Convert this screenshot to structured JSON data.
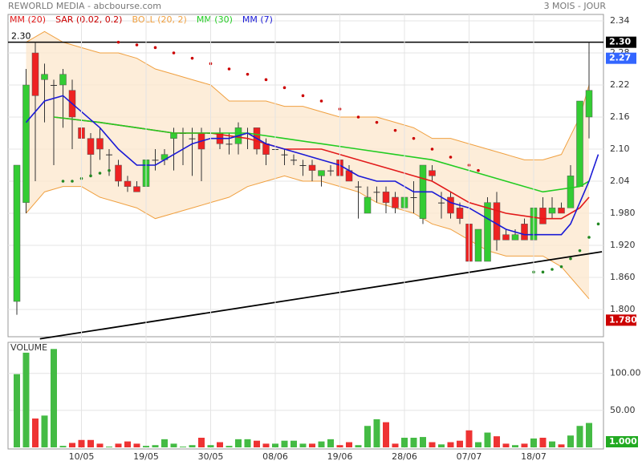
{
  "header": {
    "title": "REWORLD MEDIA - abcbourse.com",
    "period": "3 MOIS - JOUR"
  },
  "chart_data": [
    {
      "type": "candlestick",
      "up_color": "#33cc33",
      "down_color": "#ee2222",
      "open": [
        1.815,
        2.0,
        2.28,
        2.23,
        2.22,
        2.22,
        2.21,
        2.14,
        2.12,
        2.12,
        2.09,
        2.07,
        2.04,
        2.03,
        2.03,
        2.08,
        2.08,
        2.12,
        2.13,
        2.12,
        2.13,
        2.13,
        2.13,
        2.11,
        2.11,
        2.13,
        2.14,
        2.11,
        2.1,
        2.09,
        2.08,
        2.07,
        2.07,
        2.05,
        2.06,
        2.08,
        2.06,
        2.03,
        1.98,
        2.02,
        2.02,
        2.01,
        1.99,
        2.01,
        1.97,
        2.06,
        2.0,
        2.01,
        1.99,
        1.96,
        1.89,
        1.89,
        2.0,
        1.94,
        1.93,
        1.96,
        1.93,
        1.99,
        1.98,
        1.99,
        1.99,
        2.03,
        2.16
      ],
      "high": [
        2.07,
        2.25,
        2.3,
        2.26,
        2.23,
        2.25,
        2.23,
        2.15,
        2.13,
        2.14,
        2.1,
        2.08,
        2.05,
        2.04,
        2.08,
        2.1,
        2.1,
        2.14,
        2.14,
        2.14,
        2.14,
        2.14,
        2.14,
        2.13,
        2.15,
        2.14,
        2.14,
        2.12,
        2.11,
        2.1,
        2.09,
        2.08,
        2.08,
        2.06,
        2.07,
        2.09,
        2.07,
        2.04,
        2.03,
        2.03,
        2.03,
        2.02,
        2.02,
        2.04,
        2.07,
        2.07,
        2.02,
        2.02,
        2.0,
        1.97,
        1.95,
        2.01,
        2.02,
        1.95,
        1.95,
        1.97,
        1.99,
        2.01,
        2.01,
        2.0,
        2.07,
        2.19,
        2.3
      ],
      "low": [
        1.79,
        1.98,
        2.04,
        2.15,
        2.07,
        2.14,
        2.1,
        2.08,
        2.05,
        2.08,
        2.05,
        2.03,
        2.02,
        2.02,
        2.02,
        2.06,
        2.07,
        2.06,
        2.07,
        2.05,
        2.04,
        2.08,
        2.1,
        2.09,
        2.09,
        2.1,
        2.09,
        2.07,
        2.08,
        2.07,
        2.07,
        2.05,
        2.04,
        2.03,
        2.05,
        2.03,
        2.04,
        1.97,
        1.98,
        2.0,
        1.98,
        1.98,
        1.98,
        1.98,
        1.96,
        2.04,
        1.97,
        1.97,
        1.96,
        1.88,
        1.89,
        1.89,
        1.91,
        1.93,
        1.93,
        1.93,
        1.93,
        1.96,
        1.97,
        1.98,
        1.99,
        2.03,
        2.12
      ],
      "close": [
        2.07,
        2.22,
        2.2,
        2.24,
        2.22,
        2.24,
        2.16,
        2.12,
        2.09,
        2.1,
        2.09,
        2.04,
        2.03,
        2.02,
        2.08,
        2.08,
        2.09,
        2.13,
        2.13,
        2.12,
        2.1,
        2.13,
        2.11,
        2.11,
        2.14,
        2.13,
        2.1,
        2.09,
        2.1,
        2.09,
        2.08,
        2.07,
        2.06,
        2.06,
        2.06,
        2.05,
        2.04,
        2.03,
        2.01,
        2.02,
        2.0,
        1.99,
        2.01,
        2.01,
        2.07,
        2.05,
        2.0,
        1.98,
        1.97,
        1.89,
        1.95,
        2.0,
        1.93,
        1.93,
        1.94,
        1.93,
        1.99,
        1.96,
        1.99,
        1.98,
        2.05,
        2.19,
        2.21
      ],
      "ylim": [
        1.749,
        2.352
      ],
      "yticks": [
        2.34,
        2.28,
        2.22,
        2.16,
        {
          "value": 2.1,
          "label": "2.10"
        },
        2.04,
        {
          "value": 1.98,
          "label": "1.980"
        },
        {
          "value": 1.92,
          "label": "1.920"
        },
        {
          "value": 1.86,
          "label": "1.860"
        },
        {
          "value": 1.8,
          "label": "1.800"
        }
      ],
      "overlays": [
        {
          "name": "MM (20)",
          "kind": "line",
          "color": "#e21a1a",
          "x": [
            4,
            9,
            13,
            17,
            21,
            25,
            29,
            33,
            37,
            41,
            45,
            49,
            53,
            57,
            59,
            61,
            62
          ],
          "values": [
            2.16,
            2.15,
            2.14,
            2.13,
            2.13,
            2.12,
            2.1,
            2.1,
            2.08,
            2.06,
            2.04,
            2.0,
            1.98,
            1.97,
            1.97,
            1.99,
            2.01
          ]
        },
        {
          "name": "SAR (0.02, 0.2)",
          "kind": "dots",
          "color": "#cc0000",
          "below_color": "#228822",
          "x": [
            5,
            6,
            7,
            8,
            9,
            10,
            11,
            13,
            15,
            17,
            19,
            21,
            23,
            25,
            27,
            29,
            31,
            33,
            35,
            37,
            39,
            41,
            43,
            45,
            47,
            49,
            50,
            56,
            57,
            58,
            59,
            60,
            61,
            62,
            63
          ],
          "values": [
            2.04,
            2.04,
            2.045,
            2.05,
            2.055,
            2.06,
            2.3,
            2.295,
            2.29,
            2.28,
            2.27,
            2.26,
            2.25,
            2.24,
            2.23,
            2.215,
            2.2,
            2.19,
            2.175,
            2.16,
            2.15,
            2.135,
            2.12,
            2.1,
            2.085,
            2.07,
            2.06,
            1.87,
            1.87,
            1.875,
            1.88,
            1.895,
            1.91,
            1.935,
            1.96
          ]
        },
        {
          "name": "BOLL (20, 2)",
          "kind": "band",
          "color": "#f0a040",
          "fill": "#fde8d0",
          "x": [
            1,
            3,
            5,
            7,
            9,
            11,
            13,
            15,
            17,
            19,
            21,
            23,
            25,
            27,
            29,
            31,
            33,
            35,
            37,
            39,
            41,
            43,
            45,
            47,
            49,
            51,
            53,
            55,
            57,
            59,
            61,
            62
          ],
          "upper": [
            2.3,
            2.32,
            2.3,
            2.29,
            2.28,
            2.28,
            2.27,
            2.25,
            2.24,
            2.23,
            2.22,
            2.19,
            2.19,
            2.19,
            2.18,
            2.18,
            2.17,
            2.16,
            2.16,
            2.16,
            2.15,
            2.14,
            2.12,
            2.12,
            2.11,
            2.1,
            2.09,
            2.08,
            2.08,
            2.09,
            2.16,
            2.22
          ],
          "lower": [
            1.98,
            2.02,
            2.03,
            2.03,
            2.01,
            2.0,
            1.99,
            1.97,
            1.98,
            1.99,
            2.0,
            2.01,
            2.03,
            2.04,
            2.05,
            2.04,
            2.04,
            2.03,
            2.02,
            2.0,
            1.99,
            1.98,
            1.96,
            1.95,
            1.93,
            1.91,
            1.9,
            1.9,
            1.9,
            1.88,
            1.84,
            1.82
          ]
        },
        {
          "name": "MM (30)",
          "kind": "line",
          "color": "#22cc22",
          "x": [
            4,
            9,
            13,
            17,
            21,
            25,
            29,
            33,
            37,
            41,
            45,
            49,
            53,
            57,
            61,
            62
          ],
          "values": [
            2.16,
            2.15,
            2.14,
            2.13,
            2.13,
            2.13,
            2.12,
            2.11,
            2.1,
            2.09,
            2.08,
            2.06,
            2.04,
            2.02,
            2.03,
            2.04
          ]
        },
        {
          "name": "MM (7)",
          "kind": "line",
          "color": "#1a1ad6",
          "x": [
            1,
            3,
            5,
            7,
            9,
            11,
            13,
            15,
            17,
            19,
            21,
            23,
            25,
            27,
            29,
            31,
            33,
            35,
            37,
            39,
            41,
            43,
            45,
            47,
            49,
            51,
            53,
            55,
            57,
            59,
            60,
            61,
            62,
            63
          ],
          "values": [
            2.15,
            2.19,
            2.2,
            2.17,
            2.14,
            2.1,
            2.07,
            2.07,
            2.09,
            2.11,
            2.12,
            2.12,
            2.13,
            2.11,
            2.1,
            2.09,
            2.08,
            2.07,
            2.05,
            2.04,
            2.04,
            2.02,
            2.02,
            2.0,
            1.99,
            1.97,
            1.95,
            1.94,
            1.94,
            1.94,
            1.96,
            2.0,
            2.04,
            2.09
          ]
        }
      ],
      "hline": {
        "value": 2.3,
        "label": "2.30"
      },
      "trendline": {
        "x": [
          2.5,
          63.4
        ],
        "values": [
          1.745,
          1.908
        ]
      },
      "tags": [
        {
          "value": 2.3,
          "label": "2.30",
          "color": "#000000"
        },
        {
          "value": 2.27,
          "color": "#3366ff"
        },
        {
          "value": 1.78,
          "label": "1.780",
          "color": "#cc0000"
        }
      ]
    },
    {
      "type": "bar",
      "title": "VOLUME",
      "categories": [
        null,
        null,
        null,
        null,
        null,
        null,
        null,
        "10/05",
        null,
        null,
        null,
        null,
        null,
        null,
        "19/05",
        null,
        null,
        null,
        null,
        null,
        null,
        "30/05",
        null,
        null,
        null,
        null,
        null,
        null,
        "08/06",
        null,
        null,
        null,
        null,
        null,
        null,
        "19/06",
        null,
        null,
        null,
        null,
        null,
        null,
        "28/06",
        null,
        null,
        null,
        null,
        null,
        null,
        "07/07",
        null,
        null,
        null,
        null,
        null,
        null,
        "18/07",
        null,
        null,
        null,
        null,
        null,
        null
      ],
      "values": [
        99,
        128,
        39,
        43,
        133,
        2,
        6,
        10,
        10,
        5,
        1,
        5,
        8,
        5,
        2,
        3,
        11,
        5,
        1,
        3,
        13,
        3,
        7,
        2,
        11,
        11,
        9,
        5,
        5,
        9,
        9,
        5,
        5,
        8,
        11,
        3,
        7,
        3,
        29,
        38,
        34,
        5,
        13,
        13,
        14,
        7,
        4,
        7,
        9,
        23,
        7,
        20,
        15,
        5,
        3,
        5,
        12,
        13,
        8,
        4,
        16,
        29,
        33
      ],
      "ylim": [
        0,
        142
      ],
      "yticks": [
        {
          "value": 100,
          "label": "100.00"
        },
        {
          "value": 50,
          "label": "50.00"
        }
      ],
      "tag": {
        "value": 1,
        "label": "1.000",
        "color": "#22aa22"
      }
    }
  ]
}
